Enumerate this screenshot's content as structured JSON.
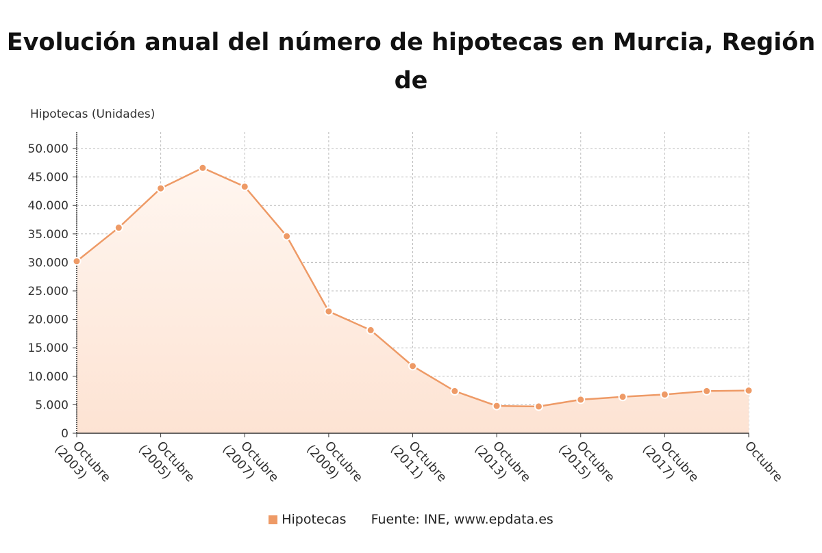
{
  "title": "Evolución anual del número de hipotecas en Murcia, Región de",
  "source": "Fuente: INE, www.epdata.es",
  "colors": {
    "line": "#ee9a66",
    "marker": "#ee9a66",
    "fill_top": "#fff6f0",
    "fill_bottom": "#fde3d3",
    "grid": "#bbbbbb"
  },
  "chart_data": {
    "type": "area",
    "title": "Evolución anual del número de hipotecas en Murcia, Región de",
    "ylabel": "Hipotecas (Unidades)",
    "xlabel": "",
    "ylim": [
      0,
      50000
    ],
    "yticks": [
      0,
      5000,
      10000,
      15000,
      20000,
      25000,
      30000,
      35000,
      40000,
      45000,
      50000
    ],
    "ytick_labels": [
      "0",
      "5.000",
      "10.000",
      "15.000",
      "20.000",
      "25.000",
      "30.000",
      "35.000",
      "40.000",
      "45.000",
      "50.000"
    ],
    "x": [
      "Octubre (2003)",
      "Octubre (2004)",
      "Octubre (2005)",
      "Octubre (2006)",
      "Octubre (2007)",
      "Octubre (2008)",
      "Octubre (2009)",
      "Octubre (2010)",
      "Octubre (2011)",
      "Octubre (2012)",
      "Octubre (2013)",
      "Octubre (2014)",
      "Octubre (2015)",
      "Octubre (2016)",
      "Octubre (2017)",
      "Octubre (2018)",
      "Octubre (2019)"
    ],
    "xtick_labels": [
      {
        "line1": "Octubre",
        "line2": "(2003)"
      },
      {
        "line1": "Octubre",
        "line2": "(2005)"
      },
      {
        "line1": "Octubre",
        "line2": "(2007)"
      },
      {
        "line1": "Octubre",
        "line2": "(2009)"
      },
      {
        "line1": "Octubre",
        "line2": "(2011)"
      },
      {
        "line1": "Octubre",
        "line2": "(2013)"
      },
      {
        "line1": "Octubre",
        "line2": "(2015)"
      },
      {
        "line1": "Octubre",
        "line2": "(2017)"
      },
      {
        "line1": "Octubre",
        "line2": ""
      }
    ],
    "grid": true,
    "legend_position": "bottom",
    "series": [
      {
        "name": "Hipotecas",
        "values": [
          30200,
          36100,
          43000,
          46600,
          43300,
          34600,
          21400,
          18100,
          11800,
          7400,
          4800,
          4700,
          5900,
          6400,
          6800,
          7400,
          7500
        ]
      }
    ]
  }
}
